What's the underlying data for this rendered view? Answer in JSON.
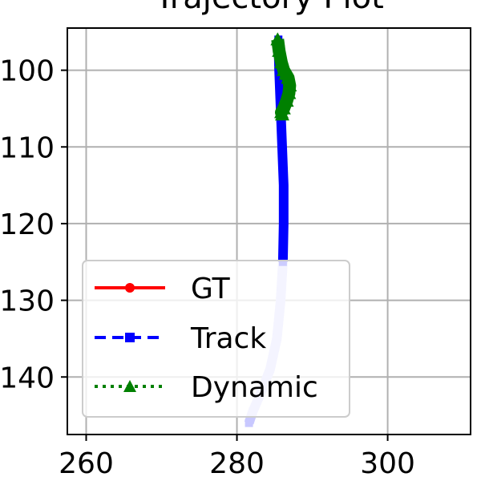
{
  "chart_data": {
    "type": "line",
    "title": "Trajectory Plot",
    "xlabel": "",
    "ylabel": "",
    "xlim": [
      257.5,
      311
    ],
    "ylim": [
      147.5,
      94.5
    ],
    "y_inverted": true,
    "grid": true,
    "x_ticks": [
      260,
      280,
      300
    ],
    "y_ticks": [
      100,
      110,
      120,
      130,
      140
    ],
    "x_tick_labels": [
      "260",
      "280",
      "300"
    ],
    "y_tick_labels": [
      "100",
      "110",
      "120",
      "130",
      "140"
    ],
    "legend": {
      "placement": "lower-left"
    },
    "series": [
      {
        "name": "GT",
        "color": "#ff0000",
        "style": "solid",
        "marker": "circle",
        "x": [],
        "y": []
      },
      {
        "name": "Track",
        "color": "#0000ff",
        "style": "dashed",
        "marker": "square",
        "x": [
          285.5,
          285.6,
          285.8,
          286.0,
          286.2,
          286.2,
          286.1,
          285.8,
          285.3,
          284.4,
          283.2,
          282.1,
          281.6
        ],
        "y": [
          96,
          100,
          105,
          110,
          115,
          120,
          125,
          130,
          135,
          139,
          142,
          144.5,
          146
        ]
      },
      {
        "name": "Dynamic",
        "color": "#008000",
        "style": "dotted",
        "marker": "triangle",
        "x": [
          285.4,
          285.6,
          285.9,
          286.2,
          286.5,
          286.8,
          287.0,
          286.9,
          286.6,
          286.2,
          285.9,
          286.0
        ],
        "y": [
          96,
          97.5,
          99,
          100,
          100.5,
          101,
          102,
          103,
          104,
          105,
          105.5,
          105.8
        ]
      }
    ]
  }
}
